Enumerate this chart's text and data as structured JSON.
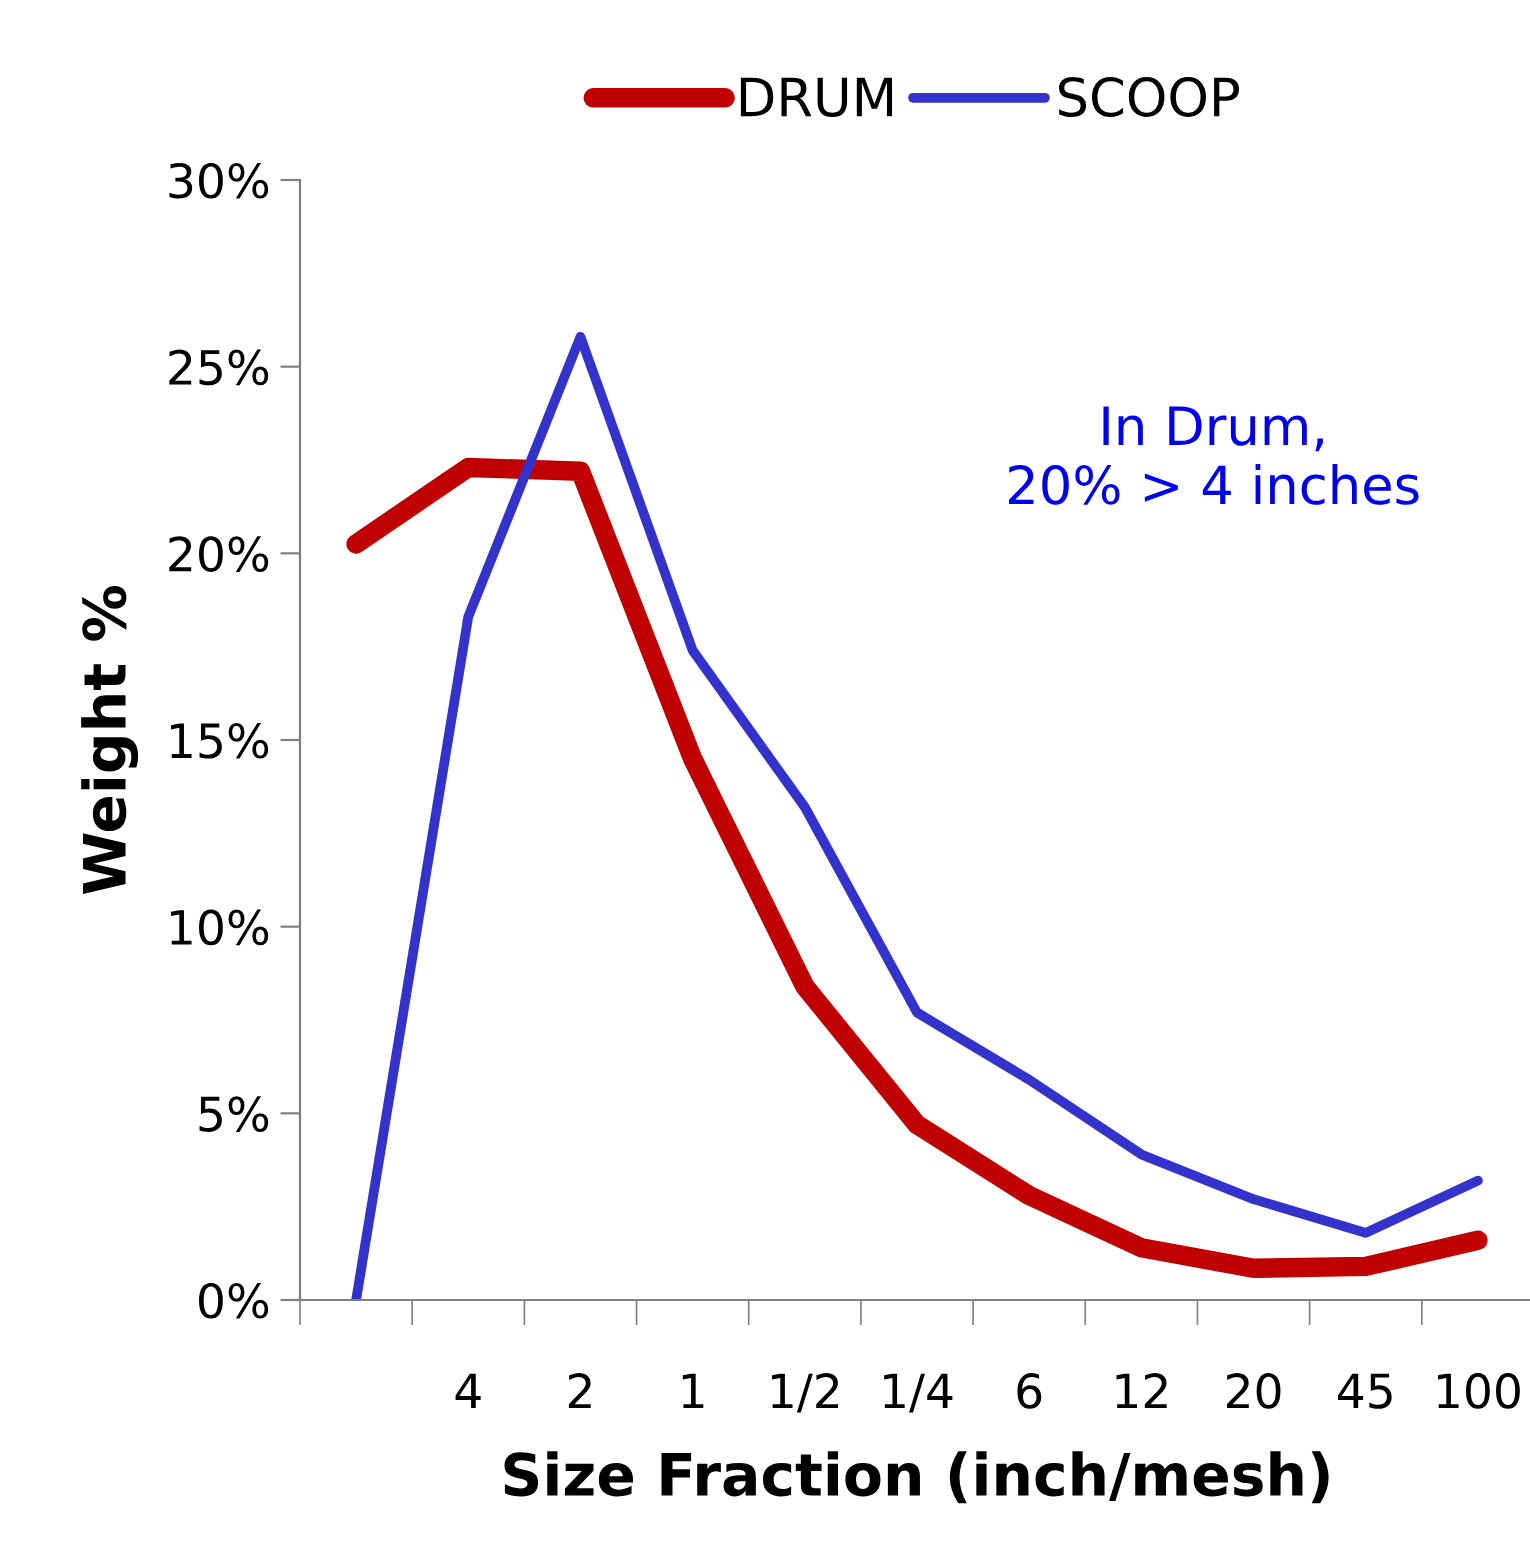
{
  "chart_data": {
    "type": "line",
    "xlabel": "Size Fraction (inch/mesh)",
    "ylabel": "Weight %",
    "categories": [
      null,
      "4",
      "2",
      "1",
      "1/2",
      "1/4",
      "6",
      "12",
      "20",
      "45",
      "100"
    ],
    "ylim": [
      0,
      30
    ],
    "yticks": [
      {
        "value": 0,
        "label": "0%"
      },
      {
        "value": 5,
        "label": "5%"
      },
      {
        "value": 10,
        "label": "10%"
      },
      {
        "value": 15,
        "label": "15%"
      },
      {
        "value": 20,
        "label": "20%"
      },
      {
        "value": 25,
        "label": "25%"
      },
      {
        "value": 30,
        "label": "30%"
      }
    ],
    "series": [
      {
        "name": "DRUM",
        "color": "#c00000",
        "values": [
          20.25,
          22.3,
          22.2,
          14.5,
          8.4,
          4.7,
          2.8,
          1.4,
          0.85,
          0.9,
          1.6
        ]
      },
      {
        "name": "SCOOP",
        "color": "#3333cc",
        "values": [
          0,
          18.3,
          25.8,
          17.4,
          13.2,
          7.7,
          5.9,
          3.9,
          2.7,
          1.8,
          3.2
        ]
      }
    ],
    "annotations": [
      "In Drum,\n20% > 4 inches"
    ],
    "legend": "top",
    "grid": false,
    "marker": "none",
    "line_style": "solid"
  }
}
